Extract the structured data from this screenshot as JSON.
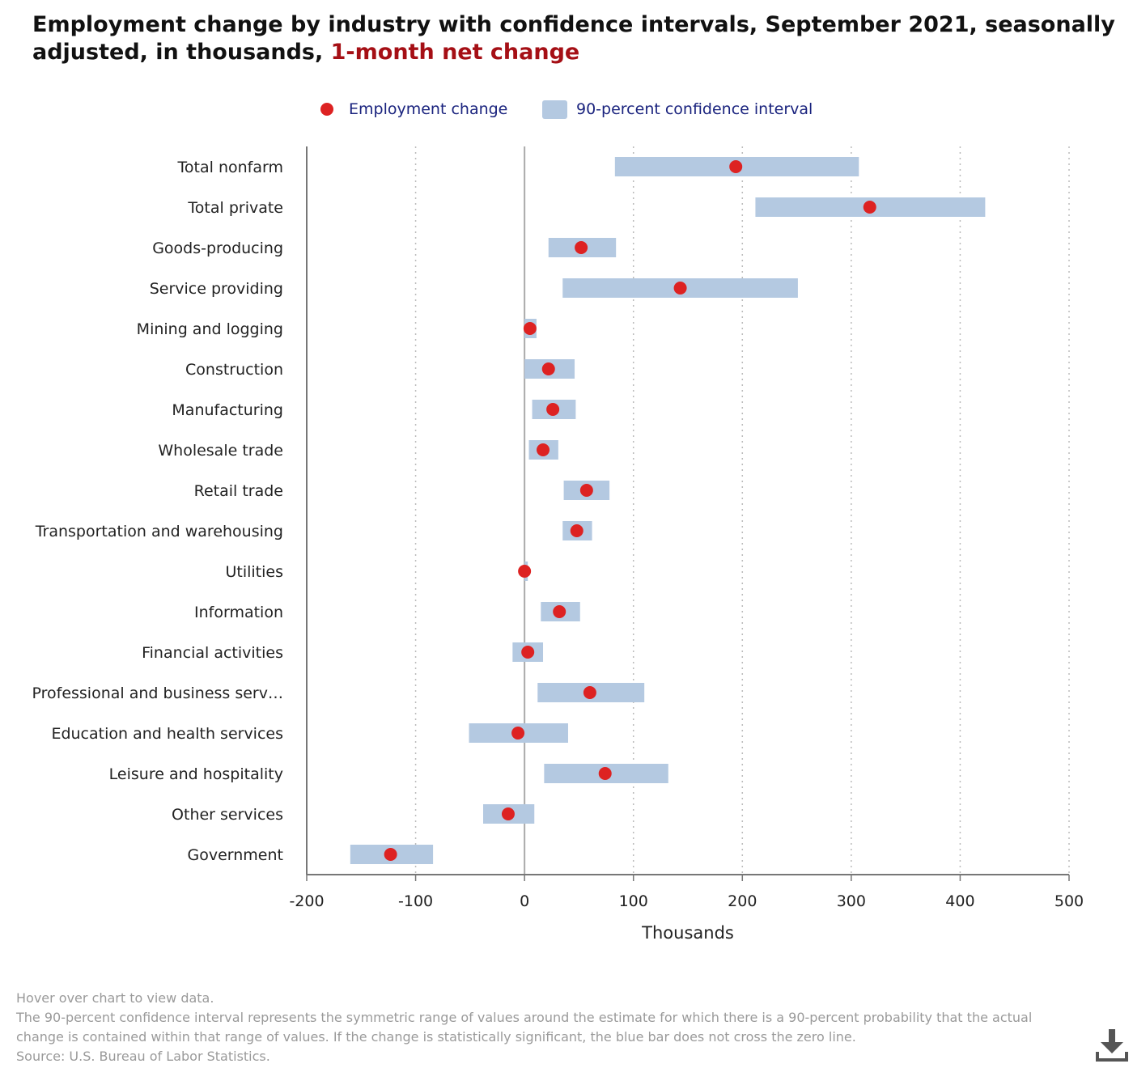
{
  "title": {
    "main": "Employment change by industry with confidence intervals, September 2021, seasonally adjusted, in thousands, ",
    "accent": "1-month net change"
  },
  "legend": {
    "point_label": "Employment change",
    "interval_label": "90-percent confidence interval"
  },
  "notes": {
    "hover": "Hover over chart to view data.",
    "explanation": "The 90-percent confidence interval represents the symmetric range of values around the estimate for which there is a 90-percent probability that the actual change is contained within that range of values. If the change is statistically significant, the blue bar does not cross the zero line.",
    "source": "Source: U.S. Bureau of Labor Statistics."
  },
  "colors": {
    "point": "#dd2222",
    "interval": "#b4c9e1",
    "accent": "#a50f15",
    "legend_text": "#1a237e"
  },
  "download_icon": "download-icon",
  "chart_data": {
    "type": "scatter",
    "xlabel": "Thousands",
    "xlim": [
      -200,
      500
    ],
    "xticks": [
      -200,
      -100,
      0,
      100,
      200,
      300,
      400,
      500
    ],
    "grid": "vertical dotted",
    "legend_position": "top-center",
    "categories": [
      "Total nonfarm",
      "Total private",
      "Goods-producing",
      "Service providing",
      "Mining and logging",
      "Construction",
      "Manufacturing",
      "Wholesale trade",
      "Retail trade",
      "Transportation and warehousing",
      "Utilities",
      "Information",
      "Financial activities",
      "Professional and business serv…",
      "Education and health services",
      "Leisure and hospitality",
      "Other services",
      "Government"
    ],
    "series": [
      {
        "name": "Employment change",
        "values": [
          194,
          317,
          52,
          143,
          5,
          22,
          26,
          17,
          57,
          48,
          0,
          32,
          3,
          60,
          -6,
          74,
          -15,
          -123
        ]
      },
      {
        "name": "90-percent confidence interval",
        "low": [
          83,
          212,
          22,
          35,
          0,
          0,
          7,
          4,
          36,
          35,
          0,
          15,
          -11,
          12,
          -51,
          18,
          -38,
          -160
        ],
        "high": [
          307,
          423,
          84,
          251,
          11,
          46,
          47,
          31,
          78,
          62,
          3,
          51,
          17,
          110,
          40,
          132,
          9,
          -84
        ]
      }
    ]
  }
}
